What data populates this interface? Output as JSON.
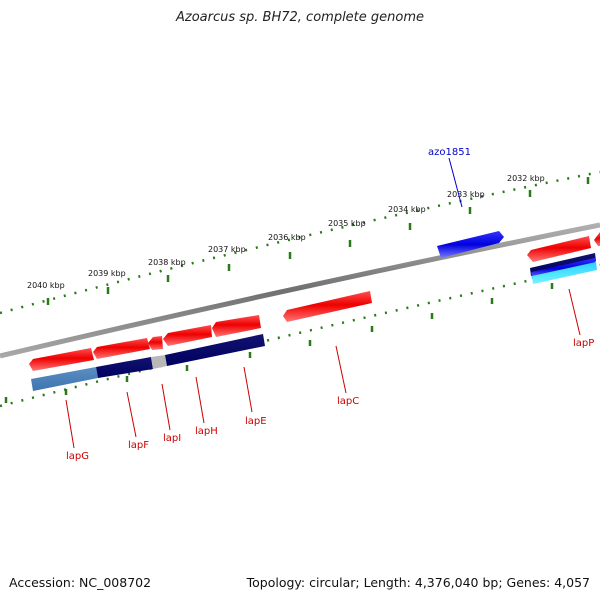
{
  "title": "Azoarcus sp. BH72, complete genome",
  "accession_text": "Accession: NC_008702",
  "topology_text": "Topology: circular; Length: 4,376,040 bp; Genes: 4,057",
  "colors": {
    "backbone": "#888888",
    "tick": "#2a7a1a",
    "gene_forward": "#ee0000",
    "gene_label": "#cc0000",
    "locus_label": "#0000cc",
    "highlight_gene": "#1111ee"
  },
  "scale_labels": [
    "2040 kbp",
    "2039 kbp",
    "2038 kbp",
    "2037 kbp",
    "2036 kbp",
    "2035 kbp",
    "2034 kbp",
    "2033 kbp",
    "2032 kbp"
  ],
  "gene_labels": [
    "lapG",
    "lapF",
    "lapI",
    "lapH",
    "lapE",
    "lapC",
    "lapP"
  ],
  "locus_labels": [
    "azo1851"
  ]
}
